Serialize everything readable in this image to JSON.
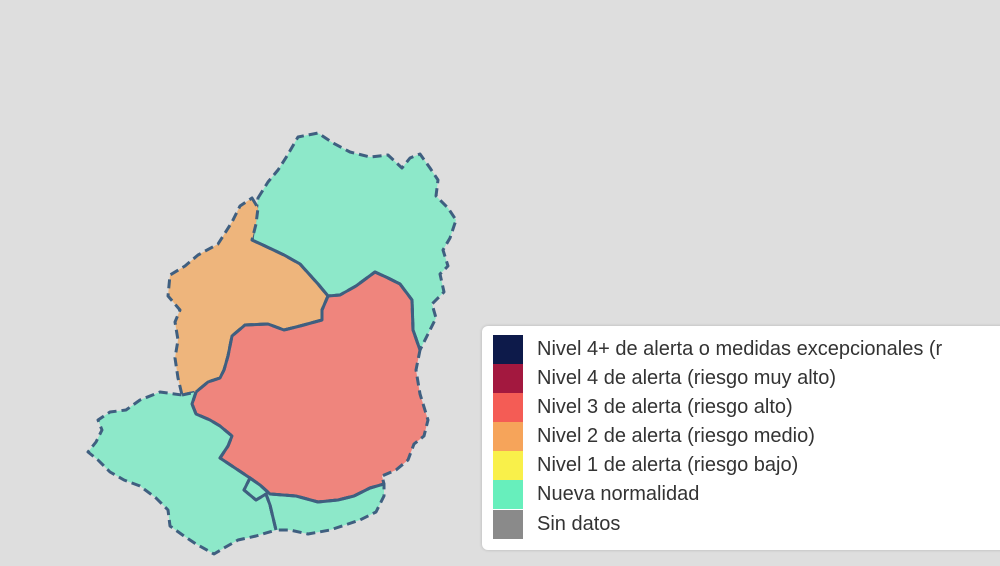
{
  "map": {
    "regions": [
      {
        "id": "north",
        "alert_level": "Nueva normalidad",
        "color": "#8de8c9"
      },
      {
        "id": "west",
        "alert_level": "Nivel 2 de alerta (riesgo medio)",
        "color": "#eeb57c"
      },
      {
        "id": "center",
        "alert_level": "Nivel 3 de alerta (riesgo alto)",
        "color": "#ef857d"
      },
      {
        "id": "southwest",
        "alert_level": "Nueva normalidad",
        "color": "#8de8c9"
      },
      {
        "id": "south",
        "alert_level": "Nueva normalidad",
        "color": "#8de8c9"
      }
    ]
  },
  "legend": {
    "items": [
      {
        "label": "Nivel 4+ de alerta o medidas excepcionales (r",
        "color": "#0d1a4a"
      },
      {
        "label": "Nivel 4 de alerta (riesgo muy alto)",
        "color": "#a3183f"
      },
      {
        "label": "Nivel 3 de alerta (riesgo alto)",
        "color": "#f45c55"
      },
      {
        "label": "Nivel 2 de alerta (riesgo medio)",
        "color": "#f6a45a"
      },
      {
        "label": "Nivel 1 de alerta (riesgo bajo)",
        "color": "#f9f04a"
      },
      {
        "label": "Nueva normalidad",
        "color": "#67efbc"
      },
      {
        "label": "Sin datos",
        "color": "#8a8a8a"
      }
    ]
  }
}
